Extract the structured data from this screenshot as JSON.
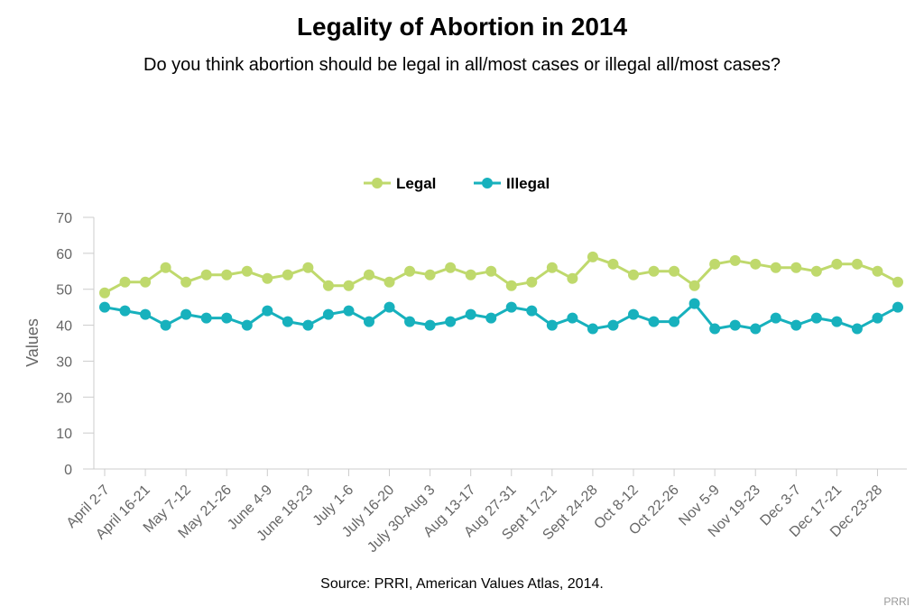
{
  "title": "Legality of Abortion in 2014",
  "subtitle": "Do you think abortion should be legal in all/most cases or illegal all/most cases?",
  "source": "Source: PRRI, American Values Atlas, 2014.",
  "credit": "PRRI",
  "chart_data": {
    "type": "line",
    "ylabel": "Values",
    "xlabel": "",
    "ylim": [
      0,
      70
    ],
    "yticks": [
      0,
      10,
      20,
      30,
      40,
      50,
      60,
      70
    ],
    "grid": false,
    "legend_position": "top-center",
    "x_tick_labels": [
      "April 2-7",
      "April 16-21",
      "May 7-12",
      "May 21-26",
      "June 4-9",
      "June 18-23",
      "July 1-6",
      "July 16-20",
      "July 30-Aug 3",
      "Aug 13-17",
      "Aug 27-31",
      "Sept 17-21",
      "Sept 24-28",
      "Oct 8-12",
      "Oct 22-26",
      "Nov 5-9",
      "Nov 19-23",
      "Dec 3-7",
      "Dec 17-21",
      "Dec 23-28"
    ],
    "series": [
      {
        "name": "Legal",
        "color": "#bfd96c",
        "values": [
          49,
          52,
          52,
          56,
          52,
          54,
          54,
          55,
          53,
          54,
          56,
          51,
          51,
          54,
          52,
          55,
          54,
          56,
          54,
          55,
          51,
          52,
          56,
          53,
          59,
          57,
          54,
          55,
          55,
          51,
          57,
          58,
          57,
          56,
          56,
          55,
          57,
          57,
          55,
          52
        ]
      },
      {
        "name": "Illegal",
        "color": "#17b1bd",
        "values": [
          45,
          44,
          43,
          40,
          43,
          42,
          42,
          40,
          44,
          41,
          40,
          43,
          44,
          41,
          45,
          41,
          40,
          41,
          43,
          42,
          45,
          44,
          40,
          42,
          39,
          40,
          43,
          41,
          41,
          46,
          39,
          40,
          39,
          42,
          40,
          42,
          41,
          39,
          42,
          45
        ]
      }
    ]
  }
}
